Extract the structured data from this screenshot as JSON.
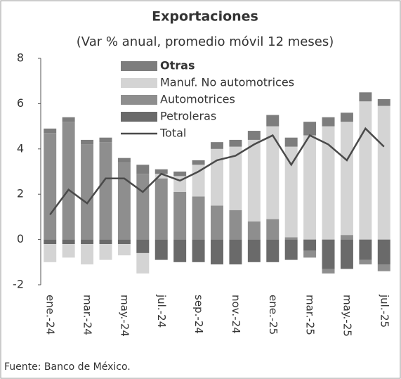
{
  "chart_data": {
    "type": "stacked_bar_line",
    "title": "Exportaciones",
    "subtitle": "(Var % anual, promedio móvil 12 meses)",
    "source": "Fuente: Banco de México.",
    "categories": [
      "ene.-24",
      null,
      "mar.-24",
      null,
      "may.-24",
      null,
      "jul.-24",
      null,
      "sep.-24",
      null,
      "nov.-24",
      null,
      "ene.-25",
      null,
      "mar.-25",
      null,
      "may.-25",
      null,
      "jul.-25"
    ],
    "series": [
      {
        "name": "Otras",
        "color": "#7d7d7d",
        "values": [
          0.2,
          0.2,
          0.2,
          0.2,
          0.2,
          0.4,
          0.2,
          0.2,
          0.2,
          0.3,
          0.3,
          0.4,
          0.5,
          0.4,
          0.6,
          0.4,
          0.4,
          0.4,
          0.3
        ]
      },
      {
        "name": "Manuf. No automotrices",
        "color": "#d4d4d4",
        "values": [
          -0.8,
          -0.6,
          -0.9,
          -0.7,
          -0.5,
          -0.9,
          0.2,
          0.7,
          1.4,
          2.5,
          2.8,
          3.6,
          4.1,
          4.0,
          4.6,
          5.0,
          5.0,
          6.1,
          5.9
        ]
      },
      {
        "name": "Automotrices",
        "color": "#8e8e8e",
        "values": [
          4.7,
          5.2,
          4.2,
          4.3,
          3.4,
          2.9,
          2.7,
          2.1,
          1.9,
          1.5,
          1.3,
          0.8,
          0.9,
          0.1,
          -0.3,
          -0.2,
          0.2,
          -0.2,
          -0.3
        ]
      },
      {
        "name": "Petroleras",
        "color": "#6a6a6a",
        "values": [
          -0.2,
          -0.2,
          -0.2,
          -0.2,
          -0.2,
          -0.6,
          -0.9,
          -1.0,
          -1.0,
          -1.1,
          -1.1,
          -1.0,
          -1.0,
          -0.9,
          -0.5,
          -1.3,
          -1.3,
          -0.9,
          -1.1
        ]
      }
    ],
    "line": {
      "name": "Total",
      "color": "#4a4a4a",
      "values": [
        1.1,
        2.2,
        1.6,
        2.7,
        2.7,
        2.1,
        2.9,
        2.6,
        3.0,
        3.5,
        3.7,
        4.2,
        4.6,
        3.3,
        4.6,
        4.2,
        3.5,
        4.9,
        4.1
      ]
    },
    "ylim": [
      -2,
      8
    ],
    "yticks": [
      -2,
      0,
      2,
      4,
      6,
      8
    ]
  }
}
